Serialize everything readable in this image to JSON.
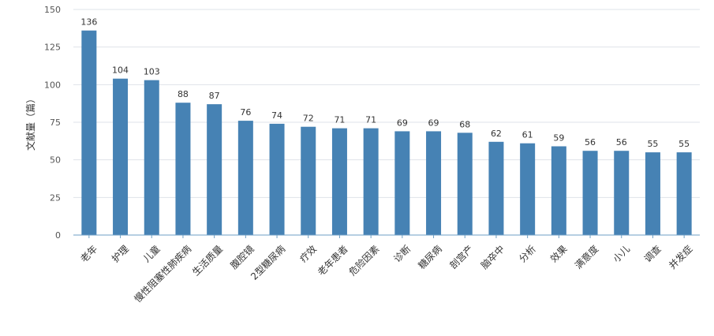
{
  "chart_data": {
    "type": "bar",
    "title": "",
    "xlabel": "",
    "ylabel": "文献量（篇）",
    "ylim": [
      0,
      150
    ],
    "yticks": [
      0,
      25,
      50,
      75,
      100,
      125,
      150
    ],
    "grid": true,
    "categories": [
      "老年",
      "护理",
      "儿童",
      "慢性阻塞性肺疾病",
      "生活质量",
      "腹腔镜",
      "2型糖尿病",
      "疗效",
      "老年患者",
      "危险因素",
      "诊断",
      "糖尿病",
      "剖宫产",
      "脑卒中",
      "分析",
      "效果",
      "满意度",
      "小儿",
      "调查",
      "并发症"
    ],
    "values": [
      136,
      104,
      103,
      88,
      87,
      76,
      74,
      72,
      71,
      71,
      69,
      69,
      68,
      62,
      61,
      59,
      56,
      56,
      55,
      55
    ],
    "colors": {
      "bar": "#4682B4",
      "grid": "#dfe3e8",
      "axis": "#6e9fc4"
    }
  }
}
